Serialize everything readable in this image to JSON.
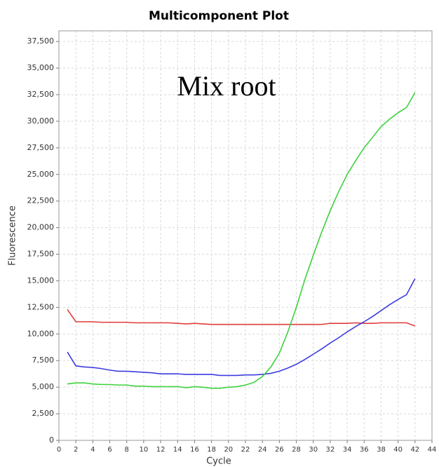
{
  "chart_data": {
    "type": "line",
    "title": "Multicomponent Plot",
    "annotation": "Mix root",
    "x_label": "Cycle",
    "y_label": "Fluorescence",
    "x": [
      1,
      2,
      3,
      4,
      5,
      6,
      7,
      8,
      9,
      10,
      11,
      12,
      13,
      14,
      15,
      16,
      17,
      18,
      19,
      20,
      21,
      22,
      23,
      24,
      25,
      26,
      27,
      28,
      29,
      30,
      31,
      32,
      33,
      34,
      35,
      36,
      37,
      38,
      39,
      40,
      41,
      42
    ],
    "series": [
      {
        "color": "#e03c3c",
        "values": [
          12300,
          11150,
          11150,
          11150,
          11100,
          11100,
          11100,
          11100,
          11050,
          11050,
          11050,
          11050,
          11050,
          11000,
          10950,
          11000,
          10950,
          10900,
          10900,
          10900,
          10900,
          10900,
          10900,
          10900,
          10900,
          10900,
          10900,
          10900,
          10900,
          10900,
          10900,
          11000,
          11000,
          11000,
          11050,
          11000,
          11000,
          11050,
          11050,
          11050,
          11050,
          10750
        ]
      },
      {
        "color": "#3c3ce0",
        "values": [
          8300,
          7000,
          6900,
          6850,
          6750,
          6600,
          6500,
          6500,
          6450,
          6400,
          6350,
          6250,
          6250,
          6250,
          6200,
          6200,
          6200,
          6200,
          6100,
          6100,
          6100,
          6150,
          6150,
          6200,
          6300,
          6500,
          6800,
          7150,
          7600,
          8100,
          8600,
          9150,
          9650,
          10200,
          10700,
          11150,
          11650,
          12200,
          12750,
          13250,
          13700,
          15200
        ]
      },
      {
        "color": "#3cd23c",
        "values": [
          5300,
          5400,
          5400,
          5300,
          5250,
          5250,
          5200,
          5200,
          5100,
          5100,
          5050,
          5050,
          5050,
          5050,
          4950,
          5050,
          5000,
          4900,
          4900,
          5000,
          5050,
          5200,
          5450,
          6000,
          6900,
          8200,
          10200,
          12500,
          15100,
          17400,
          19600,
          21600,
          23400,
          25000,
          26300,
          27500,
          28500,
          29500,
          30200,
          30800,
          31300,
          32700
        ]
      }
    ],
    "xlim": [
      0,
      44
    ],
    "xticks": [
      0,
      2,
      4,
      6,
      8,
      10,
      12,
      14,
      16,
      18,
      20,
      22,
      24,
      26,
      28,
      30,
      32,
      34,
      36,
      38,
      40,
      42,
      44
    ],
    "ylim": [
      0,
      38500
    ],
    "yticks": [
      0,
      {
        "value": 2500,
        "label": "2,500"
      },
      {
        "value": 5000,
        "label": "5,000"
      },
      {
        "value": 7500,
        "label": "7,500"
      },
      {
        "value": 10000,
        "label": "10,000"
      },
      {
        "value": 12500,
        "label": "12,500"
      },
      {
        "value": 15000,
        "label": "15,000"
      },
      {
        "value": 17500,
        "label": "17,500"
      },
      {
        "value": 20000,
        "label": "20,000"
      },
      {
        "value": 22500,
        "label": "22,500"
      },
      {
        "value": 25000,
        "label": "25,000"
      },
      {
        "value": 27500,
        "label": "27,500"
      },
      {
        "value": 30000,
        "label": "30,000"
      },
      {
        "value": 32500,
        "label": "32,500"
      },
      {
        "value": 35000,
        "label": "35,000"
      },
      {
        "value": 37500,
        "label": "37,500"
      }
    ],
    "grid": true
  }
}
